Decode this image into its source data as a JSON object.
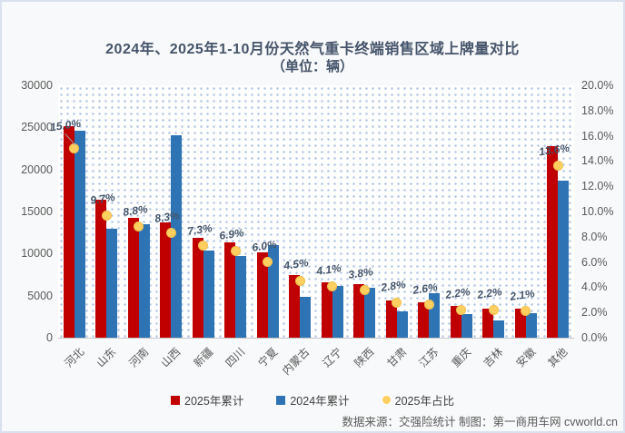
{
  "title": "2024年、2025年1-10月份天然气重卡终端销售区域上牌量对比",
  "subtitle": "（单位：辆）",
  "footer_note": "数据来源：交强险统计 制图：第一商用车网 cvworld.cn",
  "colors": {
    "series_2025": "#c00000",
    "series_2024": "#2e74b5",
    "share_dot": "#ffd05f",
    "title_text": "#44546a",
    "axis_text": "#595959",
    "gridline": "#dcdcdc"
  },
  "chart_data": {
    "type": "bar",
    "title": "2024年、2025年1-10月份天然气重卡终端销售区域上牌量对比",
    "subtitle": "（单位：辆）",
    "grid": true,
    "legend_position": "bottom",
    "categories": [
      "河北",
      "山东",
      "河南",
      "山西",
      "新疆",
      "四川",
      "宁夏",
      "内蒙古",
      "辽宁",
      "陕西",
      "甘肃",
      "江苏",
      "重庆",
      "吉林",
      "安徽",
      "其他"
    ],
    "series": [
      {
        "name": "2025年累计",
        "type": "bar",
        "color": "#c00000",
        "values": [
          25100,
          16400,
          14200,
          13700,
          11900,
          11300,
          10100,
          7400,
          6600,
          6400,
          4400,
          4200,
          3800,
          3500,
          3400,
          22800
        ]
      },
      {
        "name": "2024年累计",
        "type": "bar",
        "color": "#2e74b5",
        "values": [
          24600,
          12900,
          13500,
          24100,
          10400,
          9700,
          11000,
          4900,
          6100,
          5900,
          3100,
          5300,
          2800,
          2100,
          2900,
          18700
        ]
      },
      {
        "name": "2025年占比",
        "type": "point",
        "color": "#ffd05f",
        "axis": "right",
        "values": [
          15.0,
          9.7,
          8.8,
          8.3,
          7.3,
          6.9,
          6.0,
          4.5,
          4.1,
          3.8,
          2.8,
          2.6,
          2.2,
          2.2,
          2.1,
          13.6
        ],
        "labels": [
          "15.0%",
          "9.7%",
          "8.8%",
          "8.3%",
          "7.3%",
          "6.9%",
          "6.0%",
          "4.5%",
          "4.1%",
          "3.8%",
          "2.8%",
          "2.6%",
          "2.2%",
          "2.2%",
          "2.1%",
          "13.6%"
        ]
      }
    ],
    "left_axis": {
      "label": "",
      "min": 0,
      "max": 30000,
      "step": 5000,
      "ticks": [
        "30000",
        "25000",
        "20000",
        "15000",
        "10000",
        "5000",
        "0"
      ]
    },
    "right_axis": {
      "label": "",
      "min": 0,
      "max": 20,
      "step": 2,
      "ticks": [
        "20.0%",
        "18.0%",
        "16.0%",
        "14.0%",
        "12.0%",
        "10.0%",
        "8.0%",
        "6.0%",
        "4.0%",
        "2.0%",
        "0.0%"
      ]
    },
    "leader_line_category_index": 0
  }
}
